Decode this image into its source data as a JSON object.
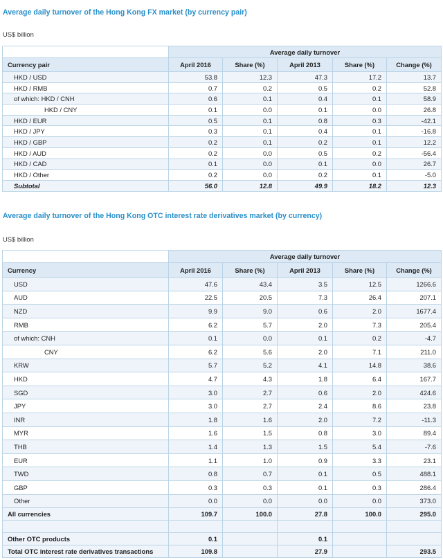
{
  "fx": {
    "title": "Average daily turnover of the Hong Kong FX market (by currency pair)",
    "unit": "US$ billion",
    "band_label": "Average daily turnover",
    "headers": [
      "Currency pair",
      "April 2016",
      "Share (%)",
      "April 2013",
      "Share (%)",
      "Change (%)"
    ],
    "rows": [
      {
        "label": "HKD / USD",
        "indent": 1,
        "values": [
          "53.8",
          "12.3",
          "47.3",
          "17.2",
          "13.7"
        ]
      },
      {
        "label": "HKD / RMB",
        "indent": 1,
        "values": [
          "0.7",
          "0.2",
          "0.5",
          "0.2",
          "52.8"
        ]
      },
      {
        "label": "of which:  HKD / CNH",
        "indent": 1,
        "values": [
          "0.6",
          "0.1",
          "0.4",
          "0.1",
          "58.9"
        ]
      },
      {
        "label": "HKD / CNY",
        "indent": 2,
        "values": [
          "0.1",
          "0.0",
          "0.1",
          "0.0",
          "26.8"
        ]
      },
      {
        "label": "HKD / EUR",
        "indent": 1,
        "values": [
          "0.5",
          "0.1",
          "0.8",
          "0.3",
          "-42.1"
        ]
      },
      {
        "label": "HKD / JPY",
        "indent": 1,
        "values": [
          "0.3",
          "0.1",
          "0.4",
          "0.1",
          "-16.8"
        ]
      },
      {
        "label": "HKD / GBP",
        "indent": 1,
        "values": [
          "0.2",
          "0.1",
          "0.2",
          "0.1",
          "12.2"
        ]
      },
      {
        "label": "HKD / AUD",
        "indent": 1,
        "values": [
          "0.2",
          "0.0",
          "0.5",
          "0.2",
          "-56.4"
        ]
      },
      {
        "label": "HKD / CAD",
        "indent": 1,
        "values": [
          "0.1",
          "0.0",
          "0.1",
          "0.0",
          "26.7"
        ]
      },
      {
        "label": "HKD / Other",
        "indent": 1,
        "values": [
          "0.2",
          "0.0",
          "0.2",
          "0.1",
          "-5.0"
        ]
      }
    ],
    "subtotal": {
      "label": "Subtotal",
      "values": [
        "56.0",
        "12.8",
        "49.9",
        "18.2",
        "12.3"
      ]
    }
  },
  "irs": {
    "title": "Average daily turnover of the Hong Kong OTC interest rate derivatives market (by currency)",
    "unit": "US$ billion",
    "band_label": "Average daily turnover",
    "headers": [
      "Currency",
      "April 2016",
      "Share (%)",
      "April 2013",
      "Share (%)",
      "Change (%)"
    ],
    "rows": [
      {
        "label": "USD",
        "indent": 1,
        "values": [
          "47.6",
          "43.4",
          "3.5",
          "12.5",
          "1266.6"
        ]
      },
      {
        "label": "AUD",
        "indent": 1,
        "values": [
          "22.5",
          "20.5",
          "7.3",
          "26.4",
          "207.1"
        ]
      },
      {
        "label": "NZD",
        "indent": 1,
        "values": [
          "9.9",
          "9.0",
          "0.6",
          "2.0",
          "1677.4"
        ]
      },
      {
        "label": "RMB",
        "indent": 1,
        "values": [
          "6.2",
          "5.7",
          "2.0",
          "7.3",
          "205.4"
        ]
      },
      {
        "label": "of which:  CNH",
        "indent": 1,
        "values": [
          "0.1",
          "0.0",
          "0.1",
          "0.2",
          "-4.7"
        ]
      },
      {
        "label": "CNY",
        "indent": 2,
        "values": [
          "6.2",
          "5.6",
          "2.0",
          "7.1",
          "211.0"
        ]
      },
      {
        "label": "KRW",
        "indent": 1,
        "values": [
          "5.7",
          "5.2",
          "4.1",
          "14.8",
          "38.6"
        ]
      },
      {
        "label": "HKD",
        "indent": 1,
        "values": [
          "4.7",
          "4.3",
          "1.8",
          "6.4",
          "167.7"
        ]
      },
      {
        "label": "SGD",
        "indent": 1,
        "values": [
          "3.0",
          "2.7",
          "0.6",
          "2.0",
          "424.6"
        ]
      },
      {
        "label": "JPY",
        "indent": 1,
        "values": [
          "3.0",
          "2.7",
          "2.4",
          "8.6",
          "23.8"
        ]
      },
      {
        "label": "INR",
        "indent": 1,
        "values": [
          "1.8",
          "1.6",
          "2.0",
          "7.2",
          "-11.3"
        ]
      },
      {
        "label": "MYR",
        "indent": 1,
        "values": [
          "1.6",
          "1.5",
          "0.8",
          "3.0",
          "89.4"
        ]
      },
      {
        "label": "THB",
        "indent": 1,
        "values": [
          "1.4",
          "1.3",
          "1.5",
          "5.4",
          "-7.6"
        ]
      },
      {
        "label": "EUR",
        "indent": 1,
        "values": [
          "1.1",
          "1.0",
          "0.9",
          "3.3",
          "23.1"
        ]
      },
      {
        "label": "TWD",
        "indent": 1,
        "values": [
          "0.8",
          "0.7",
          "0.1",
          "0.5",
          "488.1"
        ]
      },
      {
        "label": "GBP",
        "indent": 1,
        "values": [
          "0.3",
          "0.3",
          "0.1",
          "0.3",
          "286.4"
        ]
      },
      {
        "label": "Other",
        "indent": 1,
        "values": [
          "0.0",
          "0.0",
          "0.0",
          "0.0",
          "373.0"
        ]
      }
    ],
    "all": {
      "label": "All currencies",
      "values": [
        "109.7",
        "100.0",
        "27.8",
        "100.0",
        "295.0"
      ]
    },
    "other_products": {
      "label": "Other OTC products",
      "values": [
        "0.1",
        "",
        "0.1",
        "",
        ""
      ]
    },
    "total": {
      "label": "Total OTC interest rate derivatives transactions",
      "values": [
        "109.8",
        "",
        "27.9",
        "",
        "293.5"
      ]
    }
  }
}
